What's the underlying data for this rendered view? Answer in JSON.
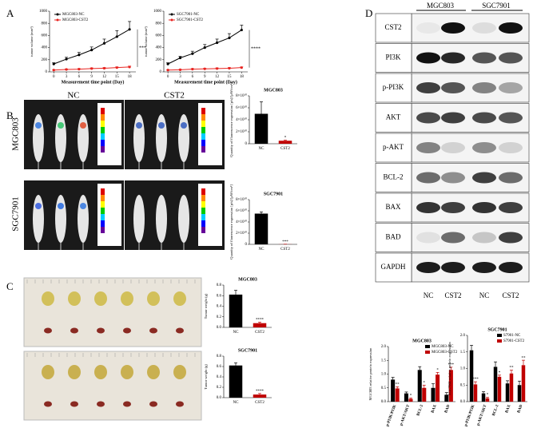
{
  "figure": {
    "panels": [
      "A",
      "B",
      "C",
      "D"
    ],
    "imaging_columns": [
      "NC",
      "CST2"
    ],
    "imaging_rows": [
      "MGC803",
      "SGC7901"
    ],
    "blot_groups": [
      "MGC803",
      "SGC7901"
    ],
    "blot_rows": [
      "CST2",
      "PI3K",
      "p-PI3K",
      "AKT",
      "p-AKT",
      "BCL-2",
      "BAX",
      "BAD",
      "GAPDH"
    ],
    "blot_lanes": [
      "NC",
      "CST2",
      "NC",
      "CST2"
    ]
  },
  "chart_data": [
    {
      "type": "line",
      "x_label": "Measurement time point (Day)",
      "y_label": "tumor volume (mm³)",
      "x": [
        0,
        3,
        6,
        9,
        12,
        15,
        18
      ],
      "xlim": [
        -1,
        19.5
      ],
      "xticks": [
        0,
        3,
        6,
        9,
        12,
        15,
        18
      ],
      "ylim": [
        0,
        1000
      ],
      "yticks": [
        0,
        200,
        400,
        600,
        800,
        1000
      ],
      "significance": "***",
      "series": [
        {
          "name": "MGC803-NC",
          "color": "#000000",
          "values": [
            130,
            210,
            280,
            360,
            470,
            580,
            700
          ],
          "errors": [
            20,
            30,
            40,
            50,
            70,
            100,
            130
          ]
        },
        {
          "name": "MGC803-CST2",
          "color": "#e8231f",
          "values": [
            30,
            40,
            45,
            55,
            60,
            70,
            80
          ],
          "errors": [
            5,
            8,
            8,
            10,
            10,
            12,
            15
          ]
        }
      ]
    },
    {
      "type": "line",
      "x_label": "Measurement time point (Day)",
      "y_label": "tumor volume (mm³)",
      "x": [
        0,
        3,
        6,
        9,
        12,
        15,
        18
      ],
      "xlim": [
        -1,
        19.5
      ],
      "xticks": [
        0,
        3,
        6,
        9,
        12,
        15,
        18
      ],
      "ylim": [
        0,
        1000
      ],
      "yticks": [
        0,
        200,
        400,
        600,
        800,
        1000
      ],
      "significance": "****",
      "series": [
        {
          "name": "SGC7901-NC",
          "color": "#000000",
          "values": [
            130,
            230,
            300,
            400,
            480,
            560,
            690
          ],
          "errors": [
            20,
            25,
            40,
            50,
            60,
            70,
            80
          ]
        },
        {
          "name": "SGC7901-CST2",
          "color": "#e8231f",
          "values": [
            30,
            35,
            45,
            50,
            55,
            60,
            70
          ],
          "errors": [
            5,
            6,
            8,
            8,
            10,
            10,
            12
          ]
        }
      ]
    },
    {
      "type": "bar",
      "title": "MGC803",
      "y_label": "Quantity of fluorescence expression [p/s]/[µW/cm²]",
      "categories": [
        "NC",
        "CST2"
      ],
      "values": [
        50000000000,
        5000000000
      ],
      "errors": [
        20000000000,
        1000000000
      ],
      "colors": [
        "#000000",
        "#c00000"
      ],
      "significance": [
        null,
        "*"
      ],
      "ylim": [
        0,
        80000000000
      ],
      "yticks": [
        {
          "value": 0,
          "label": "0"
        },
        {
          "value": 20000000000,
          "label": "2×10¹⁰"
        },
        {
          "value": 40000000000,
          "label": "4×10¹⁰"
        },
        {
          "value": 60000000000,
          "label": "6×10¹⁰"
        },
        {
          "value": 80000000000,
          "label": "8×10¹⁰"
        }
      ]
    },
    {
      "type": "bar",
      "title": "SGC7901",
      "y_label": "Quantity of fluorescence expression [p/s]/[µW/cm²]",
      "categories": [
        "NC",
        "CST2"
      ],
      "values": [
        55000000000,
        200000000
      ],
      "errors": [
        3000000000,
        100000000
      ],
      "colors": [
        "#000000",
        "#c00000"
      ],
      "significance": [
        null,
        "***"
      ],
      "ylim": [
        0,
        80000000000
      ],
      "yticks": [
        {
          "value": 0,
          "label": "0"
        },
        {
          "value": 20000000000,
          "label": "2×10¹⁰"
        },
        {
          "value": 40000000000,
          "label": "4×10¹⁰"
        },
        {
          "value": 60000000000,
          "label": "6×10¹⁰"
        },
        {
          "value": 80000000000,
          "label": "8×10¹⁰"
        }
      ]
    },
    {
      "type": "bar",
      "title": "MGC803",
      "y_label": "Tumor weight (g)",
      "categories": [
        "NC",
        "CST2"
      ],
      "values": [
        0.62,
        0.08
      ],
      "errors": [
        0.08,
        0.02
      ],
      "colors": [
        "#000000",
        "#c00000"
      ],
      "significance": [
        null,
        "****"
      ],
      "ylim": [
        0,
        0.8
      ],
      "yticks": [
        {
          "value": 0,
          "label": "0.0"
        },
        0.2,
        0.4,
        0.6,
        0.8
      ]
    },
    {
      "type": "bar",
      "title": "SGC7901",
      "y_label": "Tumor weight (g)",
      "categories": [
        "NC",
        "CST2"
      ],
      "values": [
        0.62,
        0.06
      ],
      "errors": [
        0.05,
        0.02
      ],
      "colors": [
        "#000000",
        "#c00000"
      ],
      "significance": [
        null,
        "****"
      ],
      "ylim": [
        0,
        0.8
      ],
      "yticks": [
        {
          "value": 0,
          "label": "0.0"
        },
        0.2,
        0.4,
        0.6,
        0.8
      ]
    },
    {
      "type": "grouped_bar",
      "title": "MGC803",
      "y_label": "MGC803 relative protein expression",
      "categories": [
        "p-PI3K/PI3K",
        "p-AKT/AKT",
        "BCL-2",
        "BAX",
        "BAD"
      ],
      "ylim": [
        0,
        2
      ],
      "yticks": [
        {
          "value": 0,
          "label": "0.0"
        },
        0.5,
        {
          "value": 1,
          "label": "1.0"
        },
        1.5,
        {
          "value": 2,
          "label": "2.0"
        }
      ],
      "series": [
        {
          "name": "MGC803-NC",
          "color": "#000000",
          "values": [
            0.8,
            0.3,
            1.15,
            0.5,
            0.25
          ],
          "errors": [
            0.08,
            0.05,
            0.12,
            0.15,
            0.08
          ]
        },
        {
          "name": "MGC803-CST2",
          "color": "#c00000",
          "values": [
            0.48,
            0.1,
            0.5,
            0.98,
            1.15
          ],
          "errors": [
            0.06,
            0.03,
            0.1,
            0.08,
            0.1
          ],
          "significance": [
            "**",
            "*",
            "*",
            "*",
            "***"
          ]
        }
      ]
    },
    {
      "type": "grouped_bar",
      "title": "SGC7901",
      "y_label": "SGC7901 relative protein expression",
      "categories": [
        "p-PI3K/PI3K",
        "p-AKT/AKT",
        "BCL-2",
        "BAX",
        "BAD"
      ],
      "ylim": [
        0,
        2
      ],
      "yticks": [
        {
          "value": 0,
          "label": "0.0"
        },
        0.5,
        {
          "value": 1,
          "label": "1.0"
        },
        1.5,
        {
          "value": 2,
          "label": "2.0"
        }
      ],
      "series": [
        {
          "name": "S7901-NC",
          "color": "#000000",
          "values": [
            1.55,
            0.25,
            1.05,
            0.55,
            0.5
          ],
          "errors": [
            0.15,
            0.05,
            0.15,
            0.08,
            0.12
          ]
        },
        {
          "name": "S7901-CST2",
          "color": "#c00000",
          "values": [
            0.52,
            0.1,
            0.75,
            0.85,
            1.1
          ],
          "errors": [
            0.08,
            0.03,
            0.05,
            0.1,
            0.15
          ],
          "significance": [
            "***",
            "*",
            "*",
            "**",
            "**"
          ]
        }
      ]
    }
  ]
}
